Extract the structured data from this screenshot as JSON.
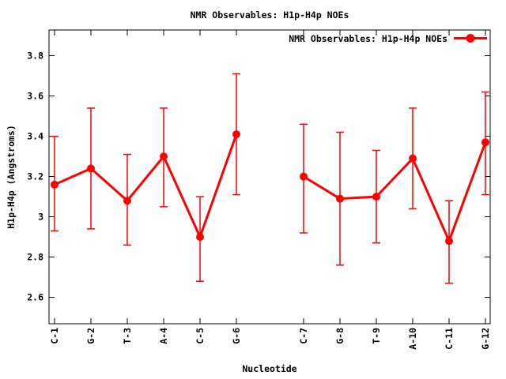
{
  "colors": {
    "series": "#ff0000",
    "axis": "#000000",
    "text": "#000000",
    "background": "#ffffff"
  },
  "chart_data": {
    "type": "line",
    "title": "NMR Observables: H1p-H4p NOEs",
    "xlabel": "Nucleotide",
    "ylabel": "H1p-H4p (Angstroms)",
    "legend": {
      "label": "NMR Observables: H1p-H4p NOEs",
      "position": "top-right-inside",
      "sample": "line-with-filled-circle"
    },
    "grid": false,
    "error_bars": true,
    "marker": "filled-circle",
    "series_color": "#ff0000",
    "ylim": [
      2.469,
      3.928
    ],
    "y_ticks": [
      2.6,
      2.8,
      3.0,
      3.2,
      3.4,
      3.6,
      3.8
    ],
    "y_tick_labels": [
      "2.6",
      "2.8",
      "3",
      "3.2",
      "3.4",
      "3.6",
      "3.8"
    ],
    "categories": [
      "C-1",
      "G-2",
      "T-3",
      "A-4",
      "C-5",
      "G-6",
      "C-7",
      "G-8",
      "T-9",
      "A-10",
      "C-11",
      "G-12"
    ],
    "segments": [
      {
        "points": [
          {
            "label": "C-1",
            "x_frac": 0.0125,
            "y": 3.16,
            "y_low": 2.93,
            "y_high": 3.4
          },
          {
            "label": "G-2",
            "x_frac": 0.095,
            "y": 3.24,
            "y_low": 2.94,
            "y_high": 3.54
          },
          {
            "label": "T-3",
            "x_frac": 0.1774,
            "y": 3.08,
            "y_low": 2.86,
            "y_high": 3.31
          },
          {
            "label": "A-4",
            "x_frac": 0.2599,
            "y": 3.3,
            "y_low": 3.05,
            "y_high": 3.54
          },
          {
            "label": "C-5",
            "x_frac": 0.3423,
            "y": 2.9,
            "y_low": 2.68,
            "y_high": 3.1
          },
          {
            "label": "G-6",
            "x_frac": 0.4247,
            "y": 3.41,
            "y_low": 3.11,
            "y_high": 3.71
          }
        ]
      },
      {
        "points": [
          {
            "label": "C-7",
            "x_frac": 0.5771,
            "y": 3.2,
            "y_low": 2.92,
            "y_high": 3.46
          },
          {
            "label": "G-8",
            "x_frac": 0.6595,
            "y": 3.09,
            "y_low": 2.76,
            "y_high": 3.42
          },
          {
            "label": "T-9",
            "x_frac": 0.7419,
            "y": 3.1,
            "y_low": 2.87,
            "y_high": 3.33
          },
          {
            "label": "A-10",
            "x_frac": 0.8244,
            "y": 3.29,
            "y_low": 3.04,
            "y_high": 3.54
          },
          {
            "label": "C-11",
            "x_frac": 0.9068,
            "y": 2.88,
            "y_low": 2.67,
            "y_high": 3.08
          },
          {
            "label": "G-12",
            "x_frac": 0.9892,
            "y": 3.37,
            "y_low": 3.11,
            "y_high": 3.62
          }
        ]
      }
    ]
  }
}
